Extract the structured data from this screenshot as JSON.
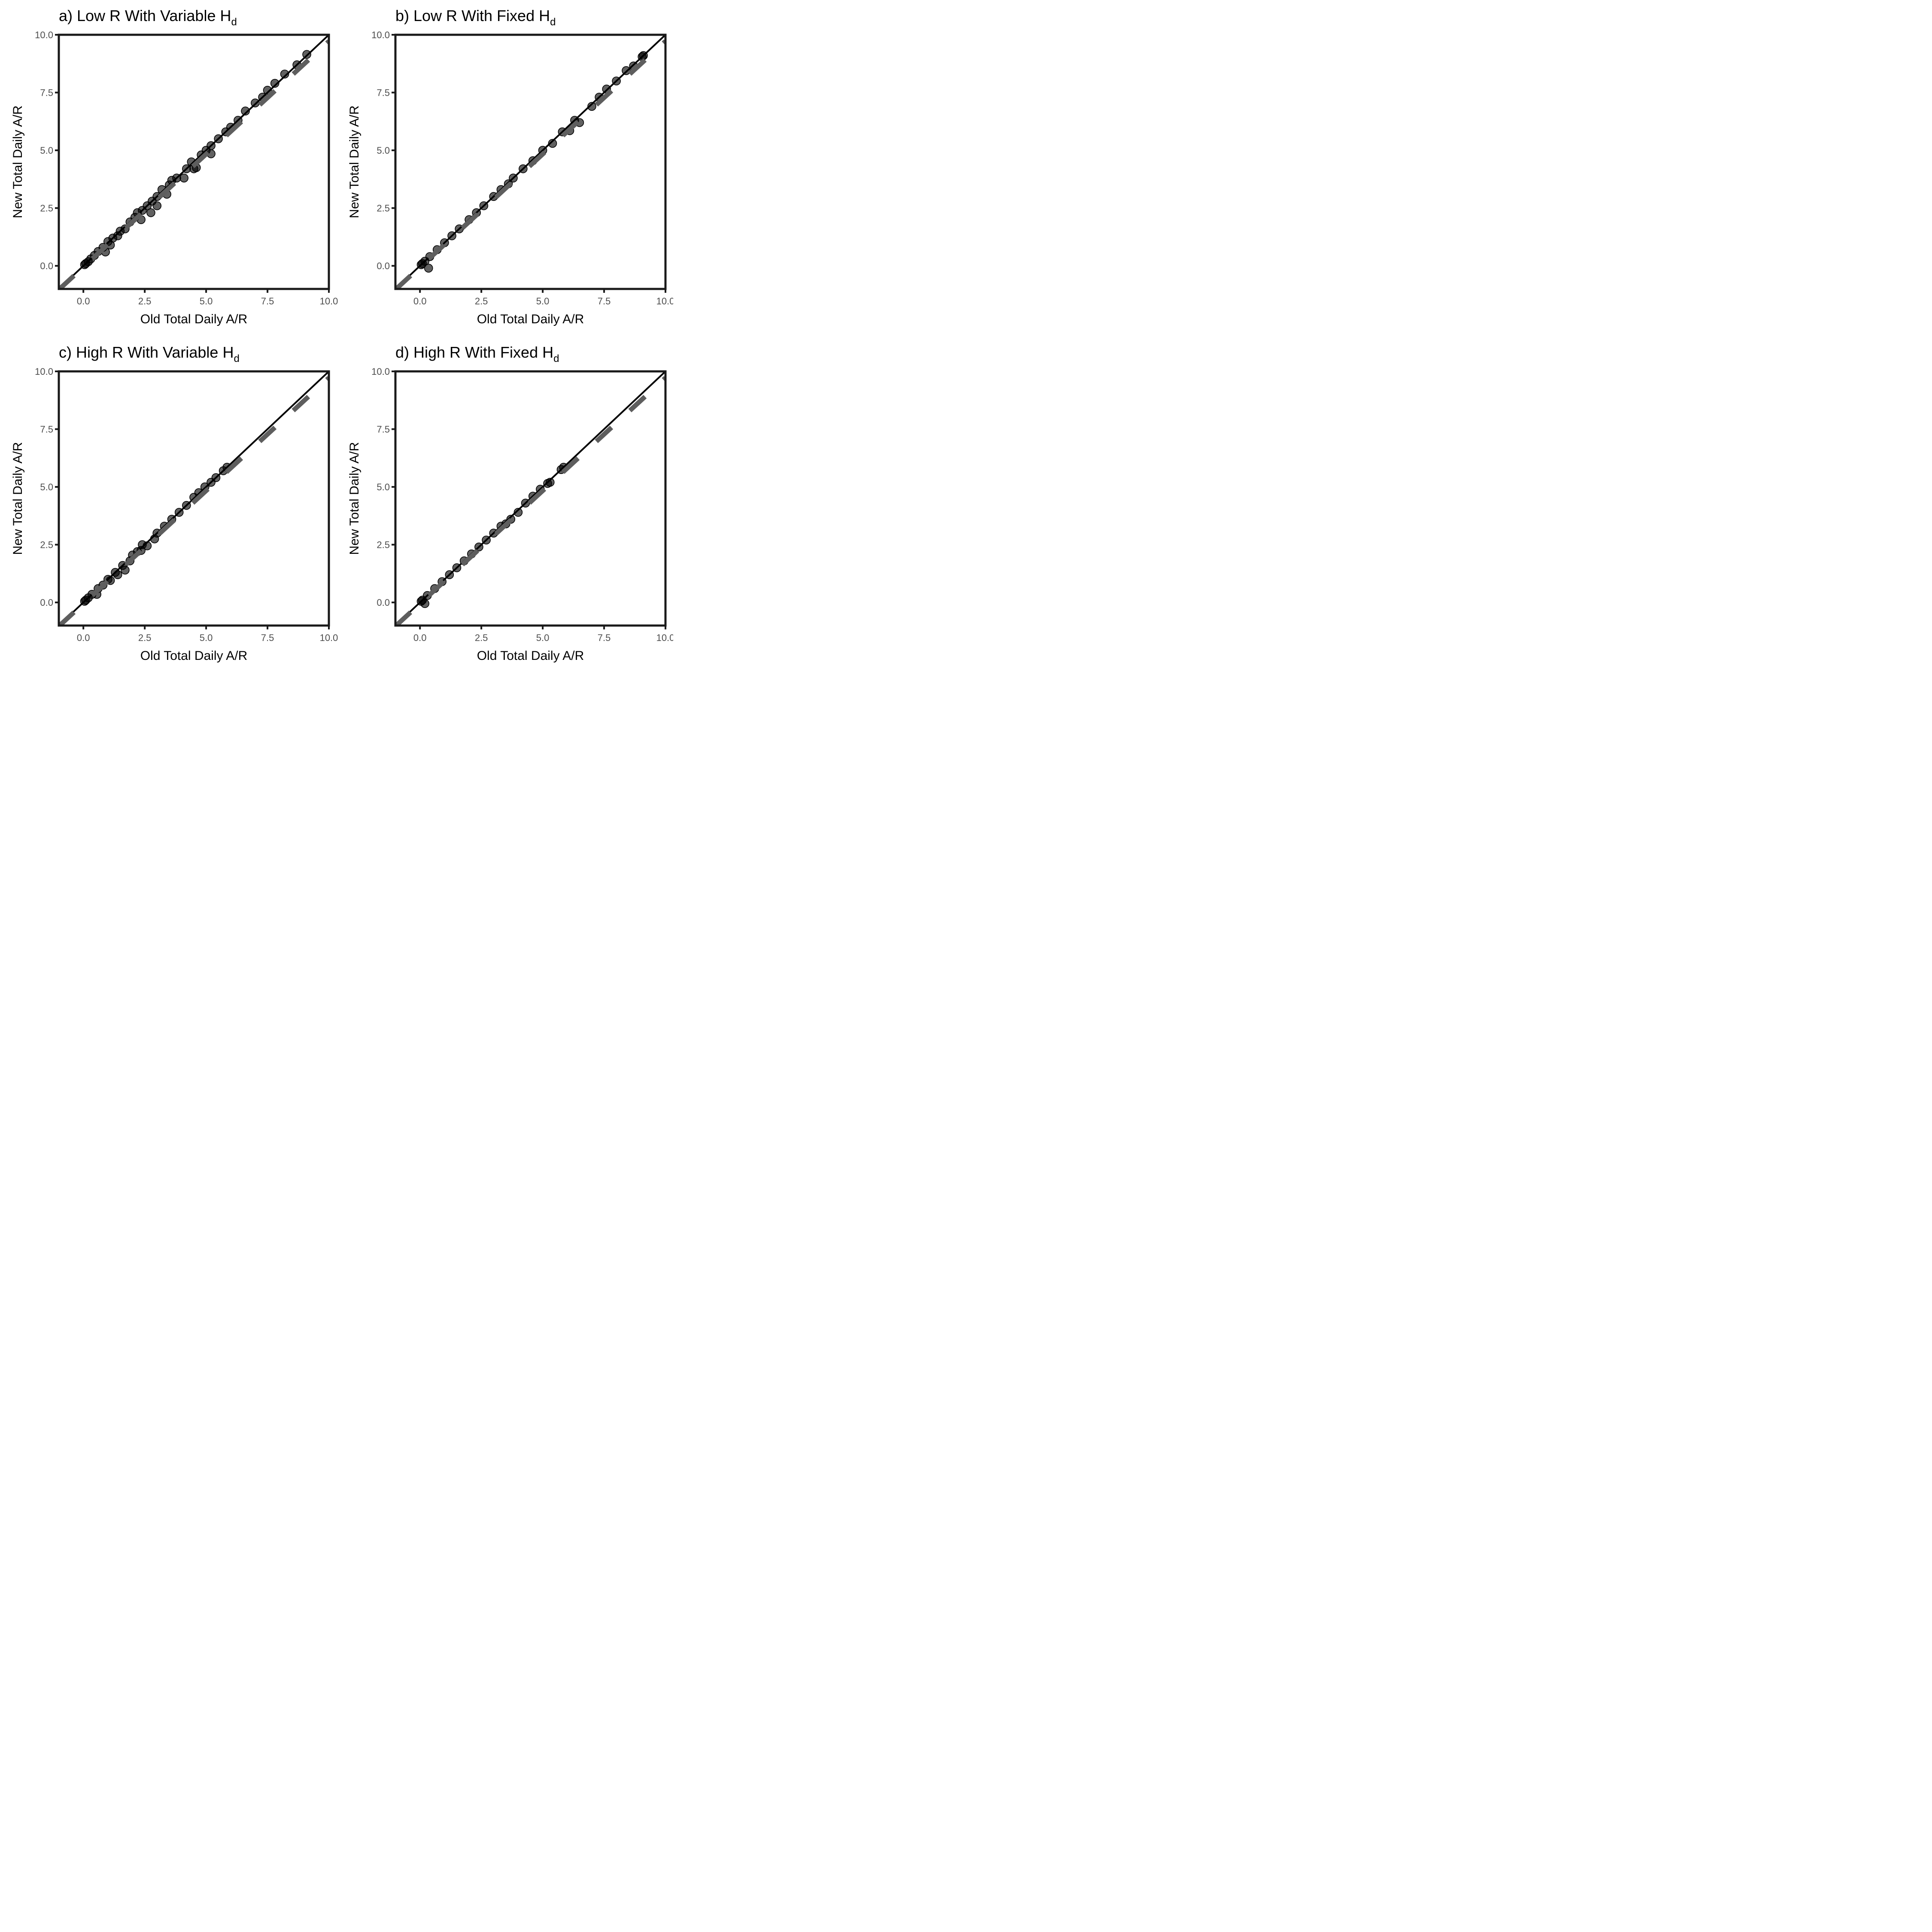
{
  "chart_data": [
    {
      "type": "scatter",
      "title": "a) Low R With Variable H",
      "title_subscript": "d",
      "xlabel": "Old Total Daily A/R",
      "ylabel": "New Total Daily A/R",
      "xlim": [
        -1,
        10
      ],
      "ylim": [
        -1,
        10
      ],
      "x_ticks": [
        "0.0",
        "2.5",
        "5.0",
        "7.5",
        "10.0"
      ],
      "y_ticks": [
        "0.0",
        "2.5",
        "5.0",
        "7.5",
        "10.0"
      ],
      "grid": false,
      "reference_lines": [
        "1:1 solid line",
        "dashed fitted line"
      ],
      "points": [
        [
          0.05,
          0.05
        ],
        [
          0.1,
          0.1
        ],
        [
          0.2,
          0.18
        ],
        [
          0.3,
          0.3
        ],
        [
          0.45,
          0.45
        ],
        [
          0.6,
          0.62
        ],
        [
          0.8,
          0.8
        ],
        [
          0.9,
          0.6
        ],
        [
          1.0,
          1.05
        ],
        [
          1.1,
          0.9
        ],
        [
          1.2,
          1.2
        ],
        [
          1.4,
          1.3
        ],
        [
          1.5,
          1.5
        ],
        [
          1.7,
          1.6
        ],
        [
          1.9,
          1.9
        ],
        [
          2.1,
          2.1
        ],
        [
          2.2,
          2.3
        ],
        [
          2.35,
          2.0
        ],
        [
          2.4,
          2.4
        ],
        [
          2.6,
          2.6
        ],
        [
          2.75,
          2.3
        ],
        [
          2.8,
          2.8
        ],
        [
          3.0,
          2.6
        ],
        [
          3.0,
          3.0
        ],
        [
          3.2,
          3.3
        ],
        [
          3.4,
          3.1
        ],
        [
          3.5,
          3.5
        ],
        [
          3.6,
          3.7
        ],
        [
          3.8,
          3.8
        ],
        [
          4.1,
          3.8
        ],
        [
          4.2,
          4.2
        ],
        [
          4.4,
          4.5
        ],
        [
          4.5,
          4.2
        ],
        [
          4.6,
          4.25
        ],
        [
          4.8,
          4.8
        ],
        [
          5.0,
          5.0
        ],
        [
          5.2,
          4.85
        ],
        [
          5.2,
          5.2
        ],
        [
          5.5,
          5.5
        ],
        [
          5.8,
          5.8
        ],
        [
          6.0,
          6.0
        ],
        [
          6.3,
          6.3
        ],
        [
          6.6,
          6.7
        ],
        [
          7.0,
          7.05
        ],
        [
          7.3,
          7.3
        ],
        [
          7.5,
          7.6
        ],
        [
          7.8,
          7.9
        ],
        [
          8.2,
          8.3
        ],
        [
          8.7,
          8.7
        ],
        [
          9.1,
          9.15
        ]
      ]
    },
    {
      "type": "scatter",
      "title": "b) Low R With Fixed H",
      "title_subscript": "d",
      "xlabel": "Old Total Daily A/R",
      "ylabel": "New Total Daily A/R",
      "xlim": [
        -1,
        10
      ],
      "ylim": [
        -1,
        10
      ],
      "x_ticks": [
        "0.0",
        "2.5",
        "5.0",
        "7.5",
        "10.0"
      ],
      "y_ticks": [
        "0.0",
        "2.5",
        "5.0",
        "7.5",
        "10.0"
      ],
      "grid": false,
      "reference_lines": [
        "1:1 solid line",
        "dashed fitted line"
      ],
      "points": [
        [
          0.05,
          0.05
        ],
        [
          0.1,
          0.1
        ],
        [
          0.2,
          0.2
        ],
        [
          0.35,
          -0.1
        ],
        [
          0.4,
          0.4
        ],
        [
          0.7,
          0.7
        ],
        [
          1.0,
          1.0
        ],
        [
          1.3,
          1.3
        ],
        [
          1.6,
          1.6
        ],
        [
          2.0,
          2.0
        ],
        [
          2.3,
          2.3
        ],
        [
          2.6,
          2.6
        ],
        [
          3.0,
          3.0
        ],
        [
          3.3,
          3.3
        ],
        [
          3.6,
          3.55
        ],
        [
          3.8,
          3.8
        ],
        [
          4.2,
          4.2
        ],
        [
          4.6,
          4.55
        ],
        [
          5.0,
          5.0
        ],
        [
          5.4,
          5.3
        ],
        [
          5.8,
          5.8
        ],
        [
          6.1,
          5.85
        ],
        [
          6.3,
          6.3
        ],
        [
          6.5,
          6.2
        ],
        [
          7.0,
          6.9
        ],
        [
          7.3,
          7.3
        ],
        [
          7.6,
          7.65
        ],
        [
          8.0,
          8.0
        ],
        [
          8.4,
          8.45
        ],
        [
          8.7,
          8.65
        ],
        [
          9.05,
          9.05
        ],
        [
          9.1,
          9.1
        ]
      ]
    },
    {
      "type": "scatter",
      "title": "c) High R With Variable H",
      "title_subscript": "d",
      "xlabel": "Old Total Daily A/R",
      "ylabel": "New Total Daily A/R",
      "xlim": [
        -1,
        10
      ],
      "ylim": [
        -1,
        10
      ],
      "x_ticks": [
        "0.0",
        "2.5",
        "5.0",
        "7.5",
        "10.0"
      ],
      "y_ticks": [
        "0.0",
        "2.5",
        "5.0",
        "7.5",
        "10.0"
      ],
      "grid": false,
      "reference_lines": [
        "1:1 solid line",
        "dashed fitted line"
      ],
      "points": [
        [
          0.05,
          0.05
        ],
        [
          0.1,
          0.1
        ],
        [
          0.2,
          0.2
        ],
        [
          0.35,
          0.35
        ],
        [
          0.55,
          0.35
        ],
        [
          0.6,
          0.6
        ],
        [
          0.8,
          0.75
        ],
        [
          1.0,
          1.0
        ],
        [
          1.1,
          0.95
        ],
        [
          1.3,
          1.3
        ],
        [
          1.4,
          1.2
        ],
        [
          1.6,
          1.6
        ],
        [
          1.7,
          1.4
        ],
        [
          1.9,
          1.8
        ],
        [
          2.0,
          2.05
        ],
        [
          2.2,
          2.2
        ],
        [
          2.35,
          2.25
        ],
        [
          2.4,
          2.5
        ],
        [
          2.6,
          2.45
        ],
        [
          2.9,
          2.75
        ],
        [
          3.0,
          3.0
        ],
        [
          3.3,
          3.3
        ],
        [
          3.6,
          3.6
        ],
        [
          3.9,
          3.9
        ],
        [
          4.2,
          4.2
        ],
        [
          4.5,
          4.55
        ],
        [
          4.7,
          4.75
        ],
        [
          4.95,
          5.0
        ],
        [
          5.2,
          5.2
        ],
        [
          5.4,
          5.4
        ],
        [
          5.7,
          5.7
        ],
        [
          5.85,
          5.85
        ]
      ]
    },
    {
      "type": "scatter",
      "title": "d) High R With Fixed H",
      "title_subscript": "d",
      "xlabel": "Old Total Daily A/R",
      "ylabel": "New Total Daily A/R",
      "xlim": [
        -1,
        10
      ],
      "ylim": [
        -1,
        10
      ],
      "x_ticks": [
        "0.0",
        "2.5",
        "5.0",
        "7.5",
        "10.0"
      ],
      "y_ticks": [
        "0.0",
        "2.5",
        "5.0",
        "7.5",
        "10.0"
      ],
      "grid": false,
      "reference_lines": [
        "1:1 solid line",
        "dashed fitted line"
      ],
      "points": [
        [
          0.05,
          0.05
        ],
        [
          0.1,
          0.1
        ],
        [
          0.2,
          -0.05
        ],
        [
          0.3,
          0.3
        ],
        [
          0.6,
          0.6
        ],
        [
          0.9,
          0.9
        ],
        [
          1.2,
          1.2
        ],
        [
          1.5,
          1.5
        ],
        [
          1.8,
          1.8
        ],
        [
          2.1,
          2.1
        ],
        [
          2.4,
          2.4
        ],
        [
          2.7,
          2.7
        ],
        [
          3.0,
          3.0
        ],
        [
          3.3,
          3.3
        ],
        [
          3.5,
          3.4
        ],
        [
          3.7,
          3.6
        ],
        [
          4.0,
          3.9
        ],
        [
          4.3,
          4.3
        ],
        [
          4.6,
          4.6
        ],
        [
          4.9,
          4.9
        ],
        [
          5.2,
          5.15
        ],
        [
          5.3,
          5.2
        ],
        [
          5.75,
          5.75
        ],
        [
          5.85,
          5.85
        ]
      ]
    }
  ]
}
